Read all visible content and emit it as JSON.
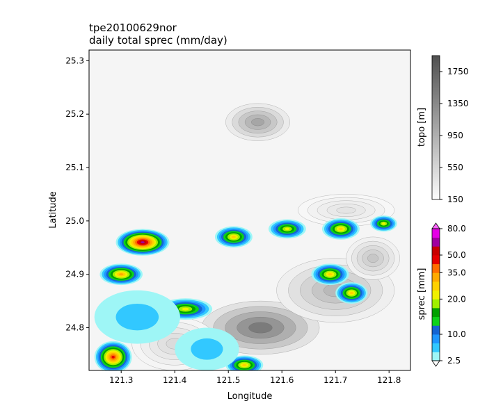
{
  "chart_data": {
    "type": "heatmap",
    "title": "tpe20100629nor",
    "subtitle": "daily total sprec (mm/day)",
    "xlabel": "Longitude",
    "ylabel": "Latitude",
    "xlim": [
      121.24,
      121.84
    ],
    "ylim": [
      24.72,
      25.32
    ],
    "xticks": [
      121.3,
      121.4,
      121.5,
      121.6,
      121.7,
      121.8
    ],
    "yticks": [
      24.8,
      24.9,
      25.0,
      25.1,
      25.2,
      25.3
    ],
    "xtick_labels": [
      "121.3",
      "121.4",
      "121.5",
      "121.6",
      "121.7",
      "121.8"
    ],
    "ytick_labels": [
      "24.8",
      "24.9",
      "25.0",
      "25.1",
      "25.2",
      "25.3"
    ],
    "topo": {
      "label": "topo [m]",
      "range": [
        150,
        1950
      ],
      "ticks": [
        150,
        550,
        950,
        1350,
        1750
      ],
      "tick_labels": [
        "150",
        "550",
        "950",
        "1350",
        "1750"
      ],
      "peaks": [
        {
          "lon": 121.555,
          "lat": 25.185,
          "height": 1050,
          "rlon": 0.06,
          "rlat": 0.035
        },
        {
          "lon": 121.56,
          "lat": 24.8,
          "height": 1500,
          "rlon": 0.11,
          "rlat": 0.05
        },
        {
          "lon": 121.7,
          "lat": 24.87,
          "height": 850,
          "rlon": 0.11,
          "rlat": 0.06
        },
        {
          "lon": 121.77,
          "lat": 24.93,
          "height": 700,
          "rlon": 0.05,
          "rlat": 0.04
        },
        {
          "lon": 121.4,
          "lat": 24.77,
          "height": 500,
          "rlon": 0.08,
          "rlat": 0.05
        },
        {
          "lon": 121.72,
          "lat": 25.02,
          "height": 400,
          "rlon": 0.09,
          "rlat": 0.03
        }
      ]
    },
    "sprec": {
      "label": "sprec [mm]",
      "levels": [
        2.5,
        5,
        7.5,
        10,
        12.5,
        15,
        17.5,
        20,
        25,
        30,
        35,
        40,
        50,
        60,
        70,
        80
      ],
      "tick_labels": [
        "2.5",
        "10.0",
        "20.0",
        "35.0",
        "50.0",
        "80.0"
      ],
      "tick_values": [
        2.5,
        10,
        20,
        35,
        50,
        80
      ],
      "colors": [
        "#9ef6f6",
        "#32c8ff",
        "#1e96ff",
        "#1464d2",
        "#0dd21a",
        "#00a000",
        "#a0f000",
        "#f0f000",
        "#ffd000",
        "#ffaa00",
        "#ff6e00",
        "#e60000",
        "#c80000",
        "#a000a0",
        "#e600e6",
        "#ff66ff"
      ],
      "cells": [
        {
          "lon": 121.34,
          "lat": 24.96,
          "max": 60,
          "rlon": 0.05,
          "rlat": 0.025
        },
        {
          "lon": 121.3,
          "lat": 24.9,
          "max": 30,
          "rlon": 0.04,
          "rlat": 0.02
        },
        {
          "lon": 121.42,
          "lat": 24.835,
          "max": 22,
          "rlon": 0.05,
          "rlat": 0.02
        },
        {
          "lon": 121.285,
          "lat": 24.745,
          "max": 45,
          "rlon": 0.035,
          "rlat": 0.03
        },
        {
          "lon": 121.53,
          "lat": 24.73,
          "max": 25,
          "rlon": 0.035,
          "rlat": 0.018
        },
        {
          "lon": 121.51,
          "lat": 24.97,
          "max": 25,
          "rlon": 0.035,
          "rlat": 0.02
        },
        {
          "lon": 121.61,
          "lat": 24.985,
          "max": 22,
          "rlon": 0.035,
          "rlat": 0.018
        },
        {
          "lon": 121.71,
          "lat": 24.985,
          "max": 25,
          "rlon": 0.035,
          "rlat": 0.02
        },
        {
          "lon": 121.79,
          "lat": 24.995,
          "max": 22,
          "rlon": 0.025,
          "rlat": 0.015
        },
        {
          "lon": 121.69,
          "lat": 24.9,
          "max": 25,
          "rlon": 0.035,
          "rlat": 0.02
        },
        {
          "lon": 121.73,
          "lat": 24.865,
          "max": 25,
          "rlon": 0.03,
          "rlat": 0.02
        },
        {
          "lon": 121.33,
          "lat": 24.82,
          "max": 6,
          "rlon": 0.08,
          "rlat": 0.05
        },
        {
          "lon": 121.46,
          "lat": 24.76,
          "max": 5,
          "rlon": 0.06,
          "rlat": 0.04
        }
      ]
    }
  }
}
